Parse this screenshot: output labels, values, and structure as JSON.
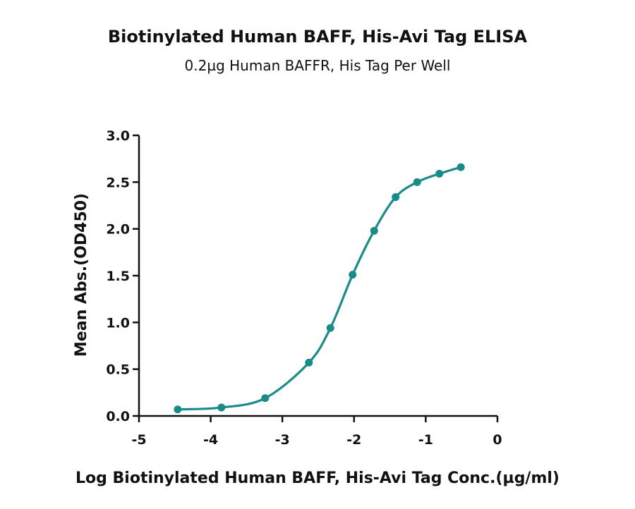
{
  "chart_data": {
    "type": "scatter",
    "title": "Biotinylated Human BAFF, His-Avi Tag ELISA",
    "subtitle": "0.2µg Human BAFFR, His Tag Per Well",
    "xlabel": "Log Biotinylated Human BAFF, His-Avi Tag Conc.(µg/ml)",
    "ylabel": "Mean Abs.(OD450)",
    "xlim": [
      -5,
      0
    ],
    "ylim": [
      0,
      3.0
    ],
    "x_ticks": [
      -5,
      -4,
      -3,
      -2,
      -1,
      0
    ],
    "x_tick_labels": [
      "-5",
      "-4",
      "-3",
      "-2",
      "-1",
      "0"
    ],
    "y_ticks": [
      0,
      0.5,
      1.0,
      1.5,
      2.0,
      2.5,
      3.0
    ],
    "y_tick_labels": [
      "0.0",
      "0.5",
      "1.0",
      "1.5",
      "2.0",
      "2.5",
      "3.0"
    ],
    "grid": false,
    "legend": "none",
    "series": [
      {
        "color": "#1a8a8a",
        "fit": "sigmoidal",
        "x": [
          -4.46,
          -3.85,
          -3.24,
          -2.63,
          -2.33,
          -2.02,
          -1.72,
          -1.42,
          -1.12,
          -0.81,
          -0.51
        ],
        "y": [
          0.07,
          0.09,
          0.19,
          0.57,
          0.94,
          1.51,
          1.98,
          2.34,
          2.5,
          2.59,
          2.66
        ]
      }
    ]
  }
}
